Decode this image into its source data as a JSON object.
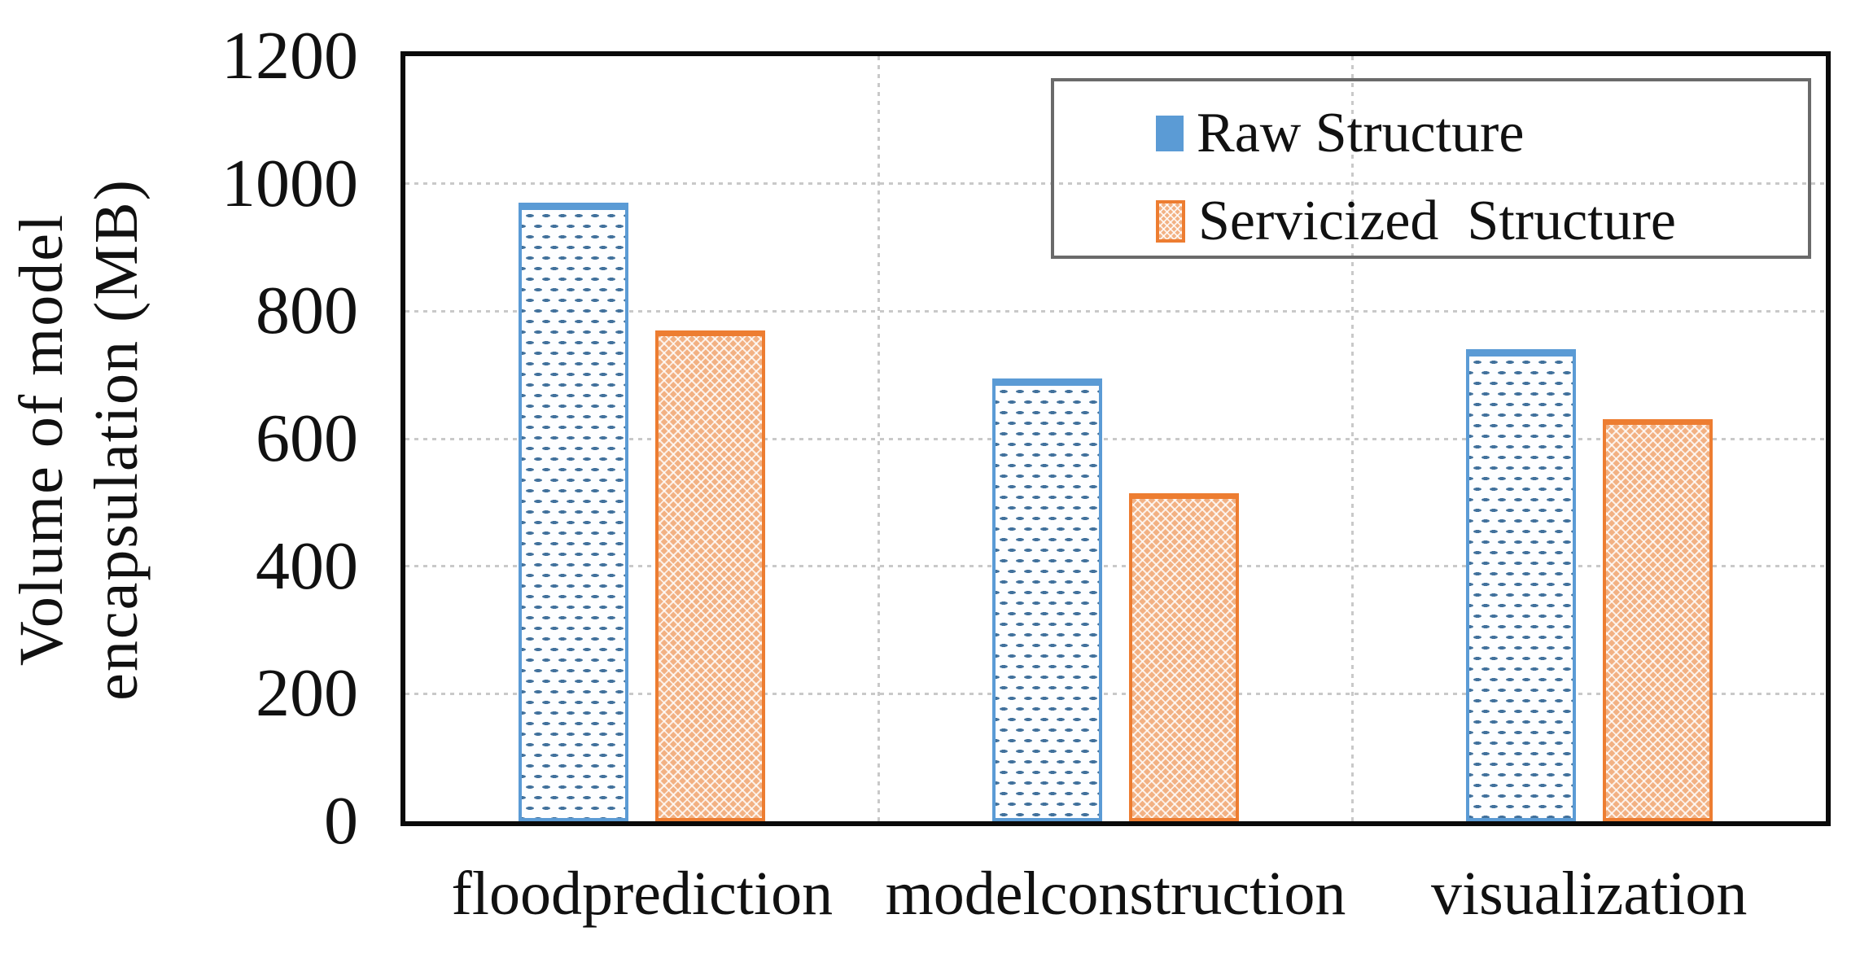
{
  "chart_data": {
    "type": "bar",
    "title": "",
    "categories": [
      "floodprediction",
      "modelconstruction",
      "visualization"
    ],
    "series": [
      {
        "name": "Raw Structure",
        "color": "#5B9BD5",
        "pattern": "horizontal-dashes-on-white",
        "values": [
          970,
          695,
          740
        ]
      },
      {
        "name": "Servicized  Structure",
        "color": "#ED7D31",
        "pattern": "white-crosshatch-on-orange",
        "values": [
          770,
          515,
          630
        ]
      }
    ],
    "xlabel": "",
    "ylabel": "Volume of model encapsulation (MB)",
    "ylabel_lines": [
      "Volume of model",
      "encapsulation (MB)"
    ],
    "ylim": [
      0,
      1200
    ],
    "yticks": [
      0,
      200,
      400,
      600,
      800,
      1000,
      1200
    ],
    "grid": "horizontal dotted lines at each ytick; vertical dotted lines at category boundaries",
    "legend_position": "top-right"
  },
  "colors": {
    "raw_bar_border": "#5B9BD5",
    "raw_bar_dash": "#41719C",
    "servicized_bar_border": "#ED7D31",
    "servicized_bar_fill": "#F2B183",
    "gridline": "#c9c9c9",
    "legend_border": "#6a6a6a",
    "frame": "#0a0a0a",
    "text": "#111111"
  }
}
